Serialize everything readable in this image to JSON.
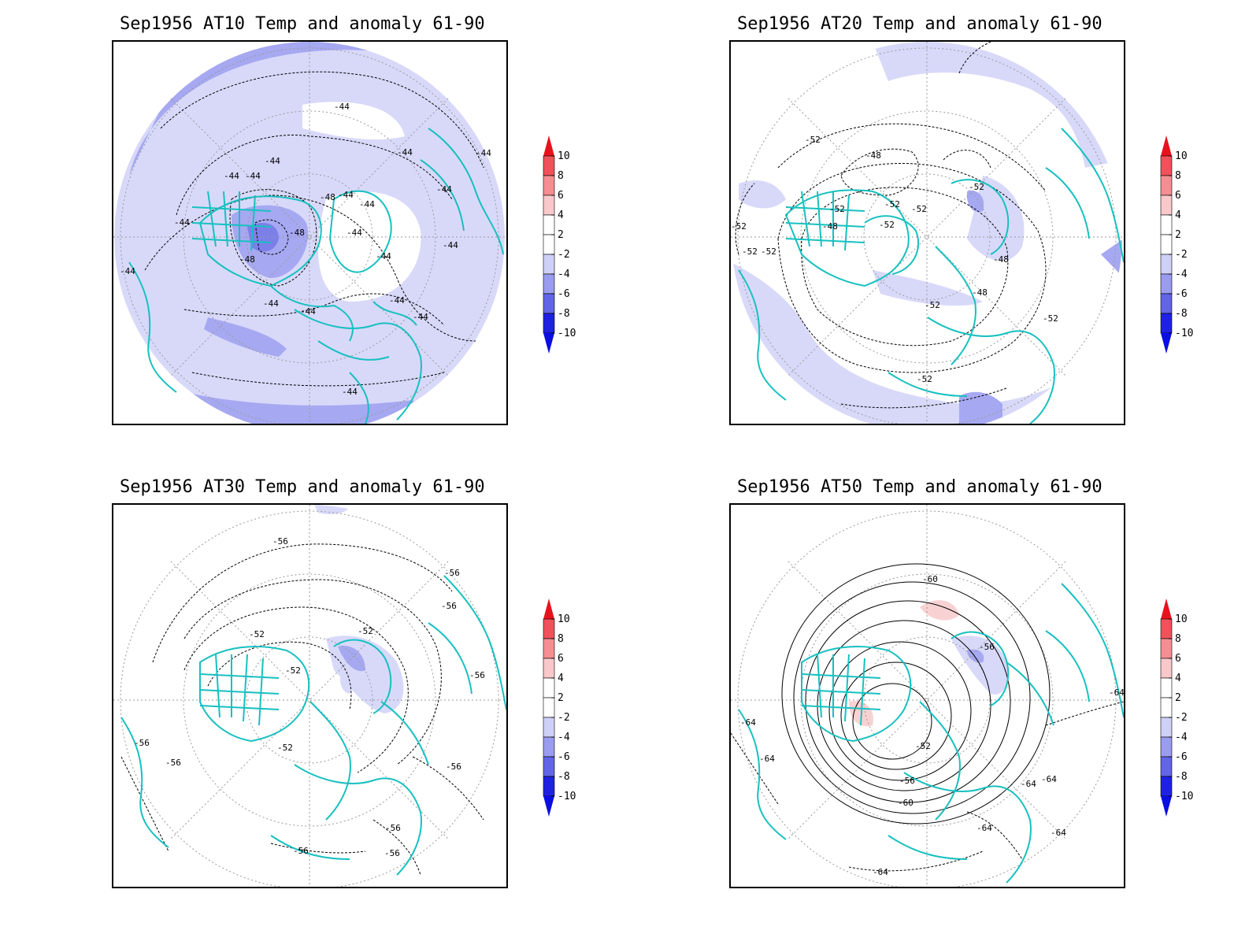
{
  "panels": [
    {
      "title": "Sep1956 AT10 Temp and anomaly 61-90",
      "contour_labels": [
        "-44",
        "-44",
        "-44",
        "-44",
        "-44",
        "-44",
        "-48",
        "-44",
        "-44",
        "-44",
        "-44",
        "-48",
        "-48",
        "-44",
        "-44",
        "-44",
        "-44",
        "-44",
        "-44",
        "-44",
        "-44",
        "-44"
      ]
    },
    {
      "title": "Sep1956 AT20 Temp and anomaly 61-90",
      "contour_labels": [
        "-52",
        "-48",
        "-52",
        "-52",
        "-52",
        "-52",
        "-48",
        "-52",
        "-52",
        "-52",
        "-48",
        "-52",
        "-48",
        "-52",
        "-52",
        "-52"
      ]
    },
    {
      "title": "Sep1956 AT30 Temp and anomaly 61-90",
      "contour_labels": [
        "-56",
        "-56",
        "-56",
        "-52",
        "-52",
        "-52",
        "-56",
        "-52",
        "-56",
        "-56",
        "-56",
        "-56",
        "-56",
        "-56"
      ]
    },
    {
      "title": "Sep1956 AT50 Temp and anomaly 61-90",
      "contour_labels": [
        "-60",
        "-56",
        "-64",
        "-52",
        "-64",
        "-56",
        "-60",
        "-64",
        "-64",
        "-64",
        "-64",
        "-64",
        "-64"
      ]
    }
  ],
  "colorbar": {
    "ticks": [
      "10",
      "8",
      "6",
      "4",
      "2",
      "-2",
      "-4",
      "-6",
      "-8",
      "-10"
    ],
    "colors": [
      "#e8121d",
      "#f0515a",
      "#f48e92",
      "#f8c8ca",
      "#ffffff",
      "#ffffff",
      "#cfd0f7",
      "#9a9cef",
      "#6265e8",
      "#1e22e0",
      "#0a0ee0"
    ]
  },
  "map_colors": {
    "coast": "#18c0c0",
    "anomaly_light": "#d8d9f9",
    "anomaly_mid": "#a6a8f1",
    "anomaly_strong": "#7d7fe9",
    "anomaly_warm": "#f8d2d2"
  }
}
